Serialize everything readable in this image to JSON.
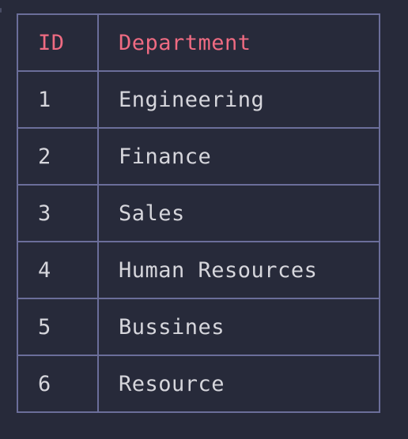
{
  "table": {
    "headers": {
      "id": "ID",
      "department": "Department"
    },
    "rows": [
      {
        "id": "1",
        "department": "Engineering"
      },
      {
        "id": "2",
        "department": "Finance"
      },
      {
        "id": "3",
        "department": "Sales"
      },
      {
        "id": "4",
        "department": "Human Resources"
      },
      {
        "id": "5",
        "department": "Bussines"
      },
      {
        "id": "6",
        "department": "Resource"
      }
    ]
  },
  "colors": {
    "background": "#272a3a",
    "border": "#6b6e9a",
    "header_text": "#ef6b82",
    "cell_text": "#d6d6dc"
  }
}
